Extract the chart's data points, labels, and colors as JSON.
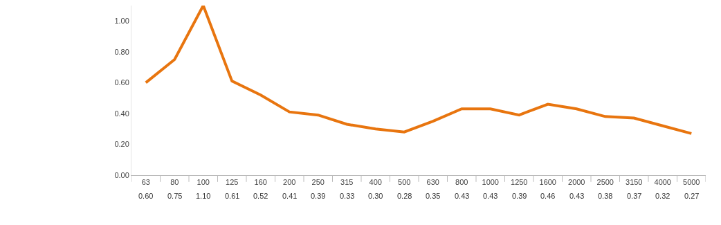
{
  "chart_data": {
    "type": "line",
    "categories": [
      "63",
      "80",
      "100",
      "125",
      "160",
      "200",
      "250",
      "315",
      "400",
      "500",
      "630",
      "800",
      "1000",
      "1250",
      "1600",
      "2000",
      "2500",
      "3150",
      "4000",
      "5000"
    ],
    "series": [
      {
        "color": "#e8750f",
        "values": [
          0.6,
          0.75,
          1.1,
          0.61,
          0.52,
          0.41,
          0.39,
          0.33,
          0.3,
          0.28,
          0.35,
          0.43,
          0.43,
          0.39,
          0.46,
          0.43,
          0.38,
          0.37,
          0.32,
          0.27
        ]
      }
    ],
    "ylim": [
      0,
      1.1
    ],
    "yticks": [
      {
        "value": 0,
        "label": "0.00"
      },
      {
        "value": 0.2,
        "label": "0.20"
      },
      {
        "value": 0.4,
        "label": "0.40"
      },
      {
        "value": 0.6,
        "label": "0.60"
      },
      {
        "value": 0.8,
        "label": "0.80"
      },
      {
        "value": 1.0,
        "label": "1.00"
      }
    ],
    "value_labels": [
      "0.60",
      "0.75",
      "1.10",
      "0.61",
      "0.52",
      "0.41",
      "0.39",
      "0.33",
      "0.30",
      "0.28",
      "0.35",
      "0.43",
      "0.43",
      "0.39",
      "0.46",
      "0.43",
      "0.38",
      "0.37",
      "0.32",
      "0.27"
    ],
    "grid": false,
    "legend": false,
    "marker": "none",
    "line_style": "solid"
  }
}
